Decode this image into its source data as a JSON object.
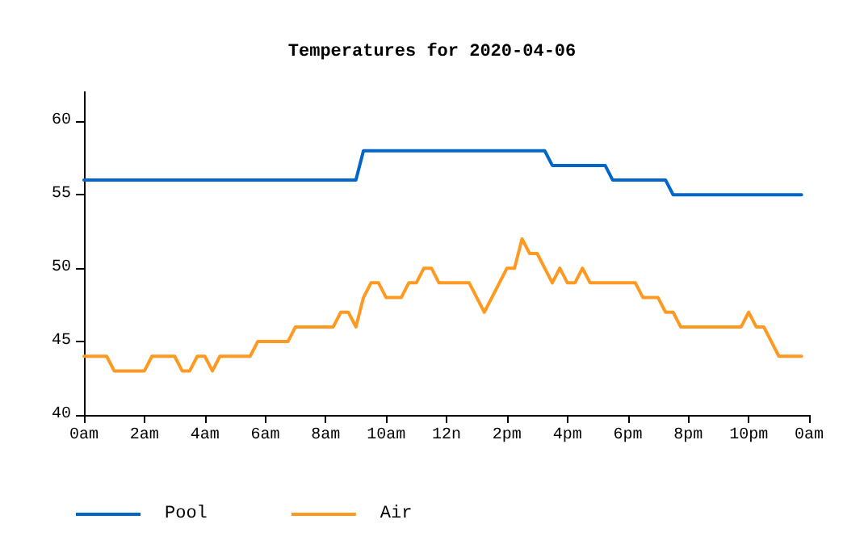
{
  "chart_data": {
    "type": "line",
    "title": "Temperatures for 2020-04-06",
    "xlim": [
      "2020-04-06T00:00",
      "2020-04-07T00:00"
    ],
    "xticks": [
      {
        "value": "2020-04-06T00:00",
        "label": "0am"
      },
      {
        "value": "2020-04-06T02:00",
        "label": "2am"
      },
      {
        "value": "2020-04-06T04:00",
        "label": "4am"
      },
      {
        "value": "2020-04-06T06:00",
        "label": "6am"
      },
      {
        "value": "2020-04-06T08:00",
        "label": "8am"
      },
      {
        "value": "2020-04-06T10:00",
        "label": "10am"
      },
      {
        "value": "2020-04-06T12:00",
        "label": "12n"
      },
      {
        "value": "2020-04-06T14:00",
        "label": "2pm"
      },
      {
        "value": "2020-04-06T16:00",
        "label": "4pm"
      },
      {
        "value": "2020-04-06T18:00",
        "label": "6pm"
      },
      {
        "value": "2020-04-06T20:00",
        "label": "8pm"
      },
      {
        "value": "2020-04-06T22:00",
        "label": "10pm"
      },
      {
        "value": "2020-04-07T00:00",
        "label": "0am"
      }
    ],
    "ylim": [
      40,
      62
    ],
    "yticks": [
      40,
      45,
      50,
      55,
      60
    ],
    "grid": false,
    "legend": "bottom left",
    "marker": "none",
    "line_style": "solid",
    "series": [
      {
        "name": "Pool",
        "color": "#0066cc",
        "x": [
          "2020-04-06T00:00",
          "2020-04-06T09:00",
          "2020-04-06T09:15",
          "2020-04-06T15:15",
          "2020-04-06T15:30",
          "2020-04-06T17:15",
          "2020-04-06T17:30",
          "2020-04-06T19:15",
          "2020-04-06T19:30",
          "2020-04-06T23:45"
        ],
        "values": [
          56,
          56,
          58,
          58,
          57,
          57,
          56,
          56,
          55,
          55
        ]
      },
      {
        "name": "Air",
        "color": "#ff9922",
        "x": [
          "2020-04-06T00:00",
          "2020-04-06T00:45",
          "2020-04-06T01:00",
          "2020-04-06T02:00",
          "2020-04-06T02:15",
          "2020-04-06T03:00",
          "2020-04-06T03:15",
          "2020-04-06T03:30",
          "2020-04-06T03:45",
          "2020-04-06T04:00",
          "2020-04-06T04:15",
          "2020-04-06T04:30",
          "2020-04-06T05:30",
          "2020-04-06T05:45",
          "2020-04-06T06:45",
          "2020-04-06T07:00",
          "2020-04-06T08:15",
          "2020-04-06T08:30",
          "2020-04-06T08:45",
          "2020-04-06T09:00",
          "2020-04-06T09:15",
          "2020-04-06T09:30",
          "2020-04-06T09:45",
          "2020-04-06T10:00",
          "2020-04-06T10:30",
          "2020-04-06T10:45",
          "2020-04-06T11:00",
          "2020-04-06T11:15",
          "2020-04-06T11:30",
          "2020-04-06T11:45",
          "2020-04-06T12:45",
          "2020-04-06T13:15",
          "2020-04-06T14:00",
          "2020-04-06T14:15",
          "2020-04-06T14:30",
          "2020-04-06T14:45",
          "2020-04-06T15:00",
          "2020-04-06T15:30",
          "2020-04-06T15:45",
          "2020-04-06T16:00",
          "2020-04-06T16:15",
          "2020-04-06T16:30",
          "2020-04-06T16:45",
          "2020-04-06T18:15",
          "2020-04-06T18:30",
          "2020-04-06T19:00",
          "2020-04-06T19:15",
          "2020-04-06T19:30",
          "2020-04-06T19:45",
          "2020-04-06T21:45",
          "2020-04-06T22:00",
          "2020-04-06T22:15",
          "2020-04-06T22:30",
          "2020-04-06T23:00",
          "2020-04-06T23:45"
        ],
        "values": [
          44,
          44,
          43,
          43,
          44,
          44,
          43,
          43,
          44,
          44,
          43,
          44,
          44,
          45,
          45,
          46,
          46,
          47,
          47,
          46,
          48,
          49,
          49,
          48,
          48,
          49,
          49,
          50,
          50,
          49,
          49,
          47,
          50,
          50,
          52,
          51,
          51,
          49,
          50,
          49,
          49,
          50,
          49,
          49,
          48,
          48,
          47,
          47,
          46,
          46,
          47,
          46,
          46,
          44,
          44
        ]
      }
    ]
  }
}
